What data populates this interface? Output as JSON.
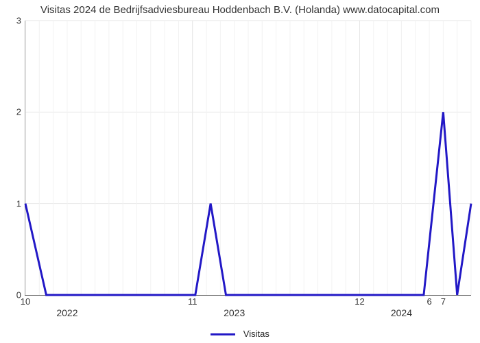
{
  "chart": {
    "type": "line",
    "title": "Visitas 2024 de Bedrijfsadviesbureau Hoddenbach B.V. (Holanda) www.datocapital.com",
    "title_fontsize": 15,
    "background_color": "#ffffff",
    "axis_color": "#666666",
    "grid_color": "#e6e6e6",
    "grid_color_minor": "#f2f2f2",
    "line_color": "#2218c6",
    "line_width": 3,
    "label_color": "#333333",
    "label_fontsize": 13,
    "y": {
      "min": 0,
      "max": 3,
      "ticks": [
        0,
        1,
        2,
        3
      ]
    },
    "x": {
      "min": 0,
      "max": 32,
      "month_major_positions": [
        0,
        12,
        24
      ],
      "month_major_labels": [
        "10",
        "11",
        "12"
      ],
      "month_minor_right": {
        "start": 29,
        "labels": [
          "6",
          "7"
        ]
      },
      "year_positions": [
        3,
        15,
        27
      ],
      "year_labels": [
        "2022",
        "2023",
        "2024"
      ]
    },
    "series": {
      "name": "Visitas",
      "points": [
        [
          0,
          1
        ],
        [
          1.5,
          0
        ],
        [
          12.2,
          0
        ],
        [
          13.3,
          1
        ],
        [
          14.4,
          0
        ],
        [
          28.6,
          0
        ],
        [
          30,
          2
        ],
        [
          31,
          0
        ],
        [
          32,
          1
        ]
      ]
    }
  },
  "legend": {
    "label": "Visitas",
    "swatch_color": "#2218c6",
    "swatch_width": 36,
    "swatch_thickness": 3
  }
}
